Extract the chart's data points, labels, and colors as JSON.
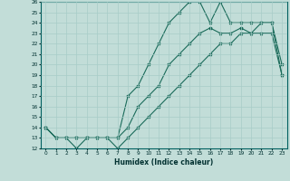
{
  "xlabel": "Humidex (Indice chaleur)",
  "xlim": [
    -0.5,
    23.5
  ],
  "ylim": [
    12,
    26
  ],
  "bg_color": "#c2ddd8",
  "grid_color": "#a8ccc8",
  "line_color": "#1a6b5a",
  "line1_x": [
    0,
    1,
    2,
    3,
    4,
    5,
    6,
    7,
    8,
    9,
    10,
    11,
    12,
    13,
    14,
    15,
    16,
    17,
    18,
    19,
    20,
    21,
    22,
    23
  ],
  "line1_y": [
    14,
    13,
    13,
    12,
    13,
    13,
    13,
    12,
    13,
    14,
    15,
    16,
    17,
    18,
    19,
    20,
    21,
    22,
    22,
    23,
    23,
    23,
    23,
    19
  ],
  "line2_x": [
    0,
    1,
    2,
    3,
    4,
    5,
    6,
    7,
    8,
    9,
    10,
    11,
    12,
    13,
    14,
    15,
    16,
    17,
    18,
    19,
    20,
    21,
    22,
    23
  ],
  "line2_y": [
    14,
    13,
    13,
    13,
    13,
    13,
    13,
    13,
    17,
    18,
    20,
    22,
    24,
    25,
    26,
    26,
    24,
    26,
    24,
    24,
    24,
    24,
    24,
    20
  ],
  "line3_x": [
    0,
    1,
    2,
    3,
    4,
    5,
    6,
    7,
    8,
    9,
    10,
    11,
    12,
    13,
    14,
    15,
    16,
    17,
    18,
    19,
    20,
    21,
    22,
    23
  ],
  "line3_y": [
    14,
    13,
    13,
    13,
    13,
    13,
    13,
    13,
    14,
    16,
    17,
    18,
    20,
    21,
    22,
    23,
    23.5,
    23,
    23,
    23.5,
    23,
    24,
    24,
    19
  ]
}
